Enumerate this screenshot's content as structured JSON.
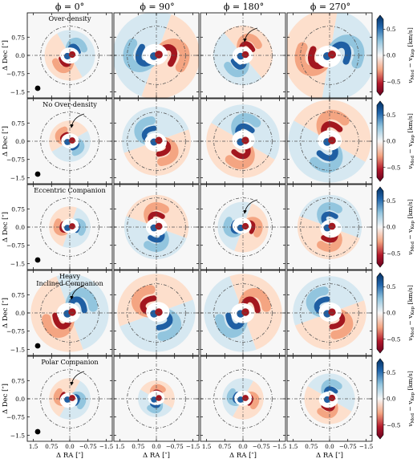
{
  "chart_data": {
    "type": "heatmap",
    "colormap": "RdBu (red negative, blue positive)",
    "colors": {
      "positive": "#1f5fa3",
      "negative": "#a3171f",
      "neutral": "#f7f7f7",
      "guide": "#555555"
    },
    "phi_columns": [
      "ϕ = 0°",
      "ϕ = 90°",
      "ϕ = 180°",
      "ϕ = 270°"
    ],
    "rows": [
      {
        "label": "Over-density",
        "arrow_col": 2
      },
      {
        "label": "No Over-density",
        "arrow_col": 0
      },
      {
        "label": "Eccentric Companion",
        "arrow_col": 2
      },
      {
        "label": "Heavy Inclined Companion",
        "arrow_col": 0
      },
      {
        "label": "Polar Companion",
        "arrow_col": 0
      }
    ],
    "xlabel": "Δ RA [″]",
    "ylabel": "Δ Dec [″]",
    "xticks": [
      "1.5",
      "0.75",
      "0.0",
      "−0.75",
      "−1.5"
    ],
    "yticks": [
      "0.75",
      "0.0",
      "−0.75",
      "−1.5"
    ],
    "xlim": [
      1.75,
      -1.75
    ],
    "ylim": [
      -1.75,
      1.75
    ],
    "dashed_circle_radius_arcsec": 1.2,
    "colorbar": {
      "label": "v_Mod − v_Kep [km/s]",
      "label_text": "v",
      "label_sub1": "Mod",
      "label_mid": " − v",
      "label_sub2": "Kep",
      "label_unit": " [km/s]",
      "ticks": [
        "0.5",
        "0.0",
        "−0.5"
      ],
      "range": [
        -0.75,
        0.75
      ]
    },
    "beam": "filled black ellipse (first column)"
  }
}
